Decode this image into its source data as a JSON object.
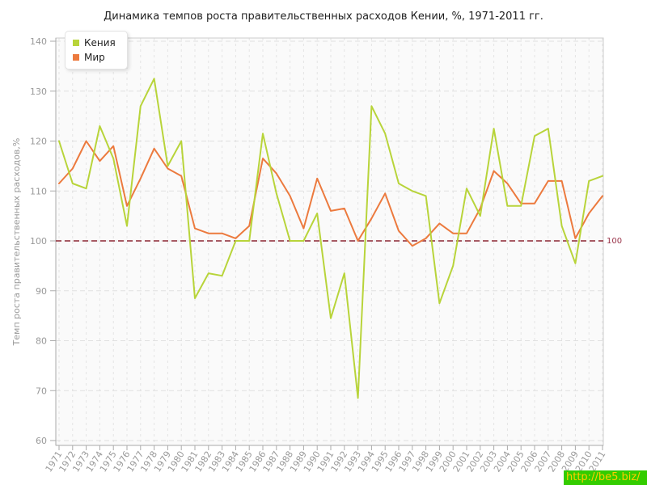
{
  "title": "Динамика темпов роста правительственных расходов Кении, %, 1971-2011 гг.",
  "y_axis_title": "Темп роста правительственных расходов,%",
  "legend": [
    {
      "id": "kenya",
      "label": "Кения",
      "color": "#b8d43a"
    },
    {
      "id": "world",
      "label": "Мир",
      "color": "#ec7a3e"
    }
  ],
  "reference_line": {
    "value": 100,
    "label": "100",
    "line_color": "#8b2633",
    "label_color": "#993349"
  },
  "watermark": {
    "text": "http://be5.biz/",
    "bg_color": "#33cc00",
    "text_color": "#ffcc00"
  },
  "chart_data": {
    "type": "line",
    "title": "Динамика темпов роста правительственных расходов Кении, %, 1971-2011 гг.",
    "xlabel": "",
    "ylabel": "Темп роста правительственных расходов,%",
    "ylim": [
      60,
      140
    ],
    "yticks": [
      60,
      70,
      80,
      90,
      100,
      110,
      120,
      130,
      140
    ],
    "grid": true,
    "legend_position": "top-left",
    "reference_value": 100,
    "x": [
      1971,
      1972,
      1973,
      1974,
      1975,
      1976,
      1977,
      1978,
      1979,
      1980,
      1981,
      1982,
      1983,
      1984,
      1985,
      1986,
      1987,
      1988,
      1989,
      1990,
      1991,
      1992,
      1993,
      1994,
      1995,
      1996,
      1997,
      1998,
      1999,
      2000,
      2001,
      2002,
      2003,
      2004,
      2005,
      2006,
      2007,
      2008,
      2009,
      2010,
      2011
    ],
    "series": [
      {
        "id": "kenya",
        "name": "Кения",
        "color": "#b8d43a",
        "values": [
          120,
          111.5,
          110.5,
          123,
          116.5,
          103,
          127,
          132.5,
          115,
          120,
          88.5,
          93.5,
          93,
          100,
          100,
          121.5,
          109.5,
          100,
          100,
          105.5,
          84.5,
          93.5,
          68.5,
          127,
          121.5,
          111.5,
          110,
          109,
          87.5,
          95,
          110.5,
          105,
          122.5,
          107,
          107,
          121,
          122.5,
          103,
          95.5,
          112,
          113
        ]
      },
      {
        "id": "world",
        "name": "Мир",
        "color": "#ec7a3e",
        "values": [
          111.5,
          114.5,
          120,
          116,
          119,
          107,
          112.5,
          118.5,
          114.5,
          113,
          102.5,
          101.5,
          101.5,
          100.5,
          103,
          116.5,
          113.5,
          109,
          102.5,
          112.5,
          106,
          106.5,
          100,
          104.5,
          109.5,
          102,
          99,
          100.5,
          103.5,
          101.5,
          101.5,
          106.5,
          114,
          111.5,
          107.5,
          107.5,
          112,
          112,
          100.5,
          105.5,
          109
        ]
      }
    ]
  }
}
